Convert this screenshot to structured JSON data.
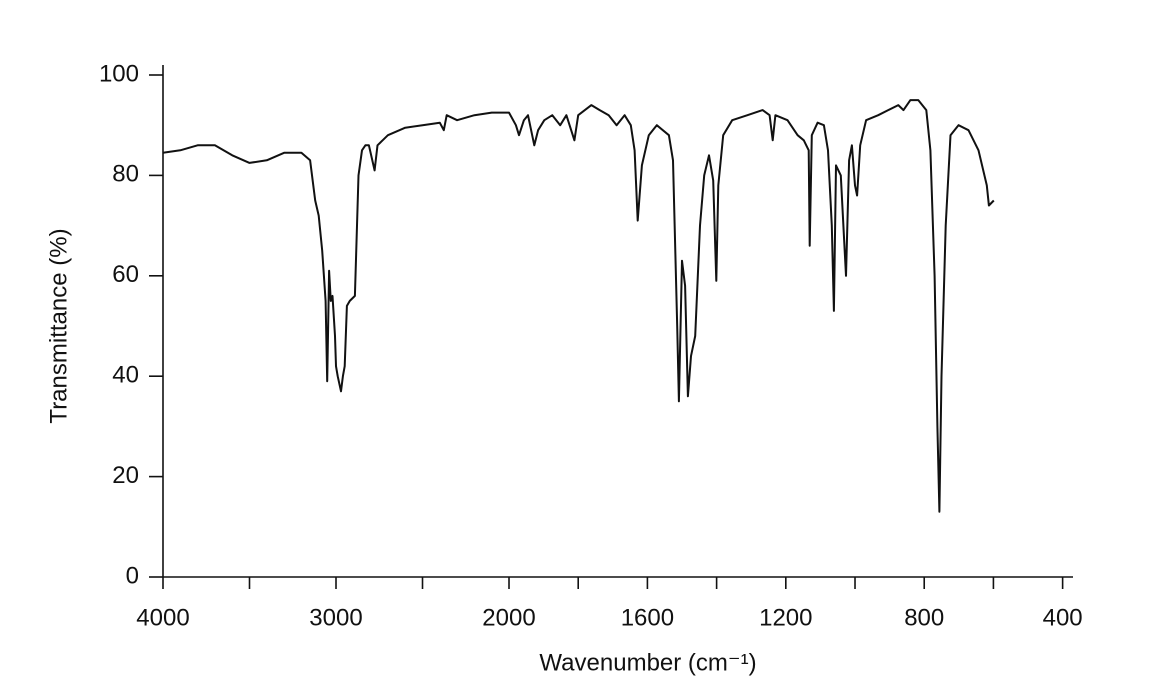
{
  "chart_data": {
    "type": "line",
    "xlabel": "Wavenumber (cm⁻¹)",
    "ylabel": "Transmittance (%)",
    "color": "#111111",
    "xlim": [
      4000,
      370
    ],
    "x_break": 2000,
    "ylim": [
      0,
      100
    ],
    "xticks": [
      4000,
      3000,
      2000,
      1600,
      1200,
      800,
      400
    ],
    "xminorticks": [
      3500,
      2500,
      1800,
      1400,
      1000,
      600
    ],
    "yticks": [
      0,
      20,
      40,
      60,
      80,
      100
    ],
    "x": [
      4000,
      3900,
      3800,
      3700,
      3600,
      3500,
      3400,
      3300,
      3200,
      3150,
      3120,
      3100,
      3080,
      3060,
      3051,
      3040,
      3030,
      3020,
      3006,
      3000,
      2990,
      2971,
      2960,
      2950,
      2937,
      2920,
      2891,
      2870,
      2850,
      2830,
      2810,
      2777,
      2760,
      2700,
      2600,
      2500,
      2400,
      2377,
      2360,
      2300,
      2200,
      2100,
      2000,
      1980,
      1971,
      1957,
      1945,
      1927,
      1916,
      1898,
      1875,
      1852,
      1834,
      1811,
      1800,
      1762,
      1738,
      1712,
      1689,
      1666,
      1648,
      1637,
      1628,
      1616,
      1596,
      1573,
      1538,
      1526,
      1514,
      1509,
      1500,
      1491,
      1483,
      1474,
      1462,
      1448,
      1436,
      1422,
      1410,
      1401,
      1395,
      1381,
      1355,
      1311,
      1267,
      1247,
      1238,
      1230,
      1195,
      1166,
      1148,
      1134,
      1131,
      1125,
      1108,
      1090,
      1078,
      1067,
      1061,
      1055,
      1041,
      1032,
      1026,
      1017,
      1009,
      1000,
      994,
      985,
      968,
      933,
      904,
      875,
      860,
      840,
      817,
      794,
      782,
      770,
      762,
      756,
      750,
      738,
      724,
      701,
      672,
      643,
      619,
      613,
      599
    ],
    "y": [
      84.5,
      85,
      86,
      86,
      84,
      82.5,
      83,
      84.5,
      84.5,
      83,
      75,
      72,
      65,
      55,
      39,
      61,
      55,
      56,
      48,
      42,
      40,
      37,
      40,
      42,
      54,
      55,
      56,
      80,
      85,
      86,
      86,
      81,
      86,
      88,
      89.5,
      90,
      90.5,
      89,
      92,
      91,
      92,
      92.5,
      92.5,
      90,
      88,
      91,
      92,
      86,
      89,
      91,
      92,
      90,
      92,
      87,
      92,
      94,
      93,
      92,
      90,
      92,
      90,
      85,
      71,
      82,
      88,
      90,
      88,
      83,
      50,
      35,
      63,
      58,
      36,
      44,
      48,
      70,
      80,
      84,
      79,
      59,
      78,
      88,
      91,
      92,
      93,
      92,
      87,
      92,
      91,
      88,
      87,
      85,
      66,
      88,
      90.5,
      90,
      85,
      70,
      53,
      82,
      80,
      68,
      60,
      83,
      86,
      78,
      76,
      86,
      91,
      92,
      93,
      94,
      93,
      95,
      95,
      93,
      85,
      60,
      30,
      13,
      40,
      70,
      88,
      90,
      89,
      85,
      78,
      74,
      75
    ]
  }
}
